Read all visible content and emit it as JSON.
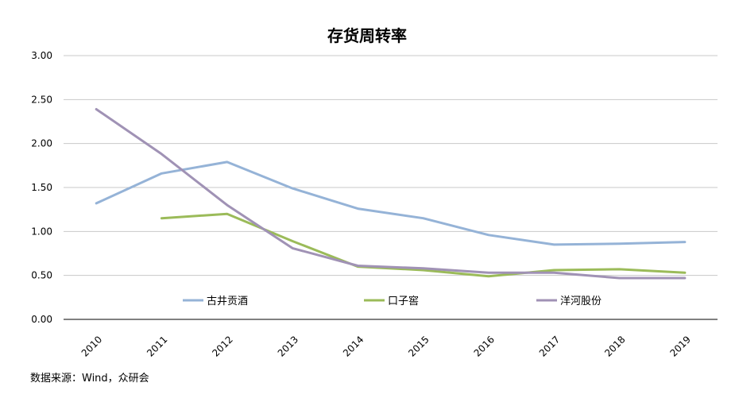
{
  "chart_data": {
    "type": "line",
    "title": "存货周转率",
    "xlabel": "",
    "ylabel": "",
    "x": [
      "2010",
      "2011",
      "2012",
      "2013",
      "2014",
      "2015",
      "2016",
      "2017",
      "2018",
      "2019"
    ],
    "ylim": [
      0,
      3
    ],
    "yticks": [
      "0.00",
      "0.50",
      "1.00",
      "1.50",
      "2.00",
      "2.50",
      "3.00"
    ],
    "grid": true,
    "legend_position": "bottom-inside",
    "series": [
      {
        "name": "古井贡酒",
        "color": "#95b3d7",
        "values": [
          1.32,
          1.66,
          1.79,
          1.49,
          1.26,
          1.15,
          0.96,
          0.85,
          0.86,
          0.88
        ]
      },
      {
        "name": "口子窖",
        "color": "#9bbb59",
        "values": [
          null,
          1.15,
          1.2,
          0.89,
          0.6,
          0.56,
          0.49,
          0.56,
          0.57,
          0.53
        ]
      },
      {
        "name": "洋河股份",
        "color": "#a092b5",
        "values": [
          2.39,
          1.88,
          1.3,
          0.81,
          0.61,
          0.58,
          0.53,
          0.53,
          0.47,
          0.47
        ]
      }
    ]
  },
  "source_text": "数据来源：Wind，众研会"
}
